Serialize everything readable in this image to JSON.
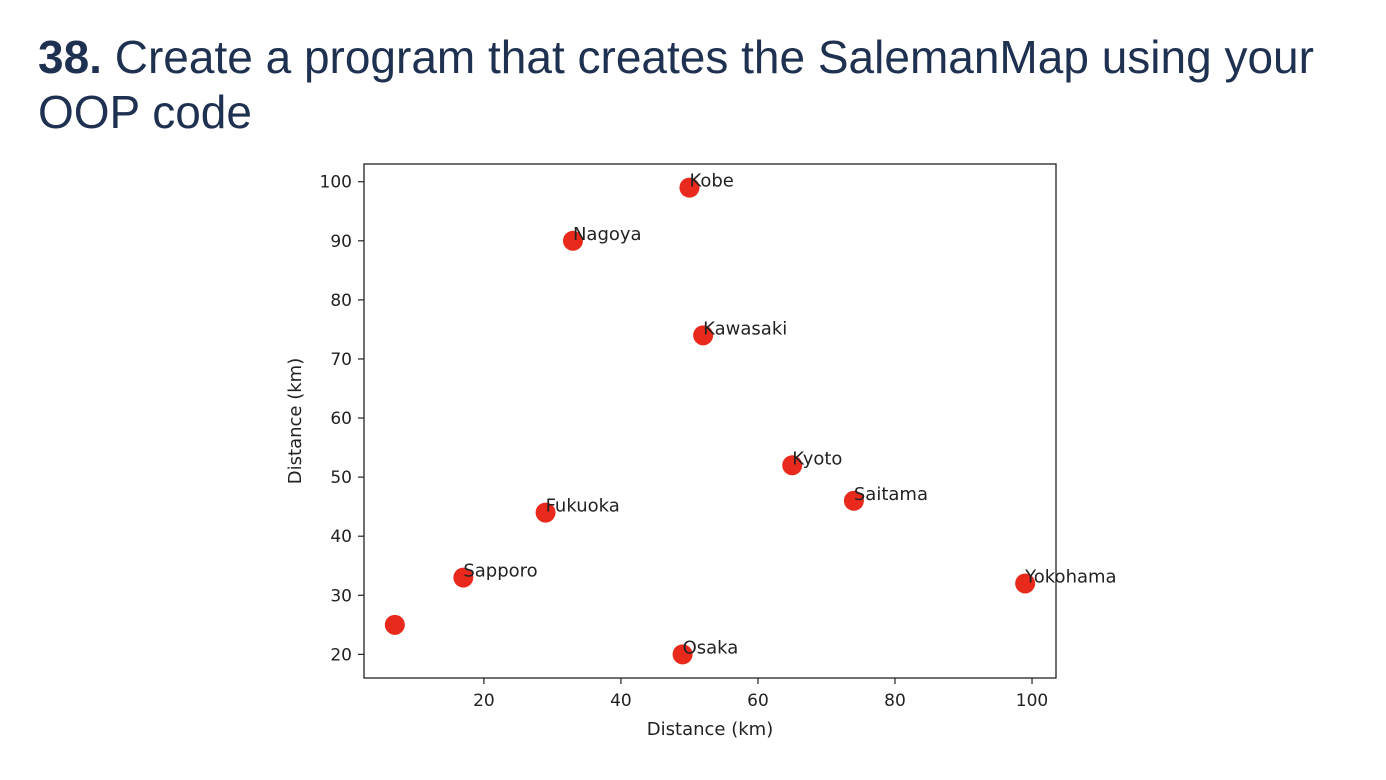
{
  "heading": {
    "number": "38.",
    "text": "Create a program that creates the SalemanMap using your OOP code"
  },
  "chart_data": {
    "type": "scatter",
    "title": "",
    "xlabel": "Distance (km)",
    "ylabel": "Distance (km)",
    "xlim": [
      2.5,
      103.5
    ],
    "ylim": [
      16,
      103
    ],
    "xticks": [
      20,
      40,
      60,
      80,
      100
    ],
    "yticks": [
      20,
      30,
      40,
      50,
      60,
      70,
      80,
      90,
      100
    ],
    "grid": false,
    "marker_color": "#e8291c",
    "points": [
      {
        "x": 7,
        "y": 25,
        "label": ""
      },
      {
        "x": 17,
        "y": 33,
        "label": "Sapporo"
      },
      {
        "x": 29,
        "y": 44,
        "label": "Fukuoka"
      },
      {
        "x": 33,
        "y": 90,
        "label": "Nagoya"
      },
      {
        "x": 50,
        "y": 99,
        "label": "Kobe"
      },
      {
        "x": 52,
        "y": 74,
        "label": "Kawasaki"
      },
      {
        "x": 49,
        "y": 20,
        "label": "Osaka"
      },
      {
        "x": 65,
        "y": 52,
        "label": "Kyoto"
      },
      {
        "x": 74,
        "y": 46,
        "label": "Saitama"
      },
      {
        "x": 99,
        "y": 32,
        "label": "Yokohama"
      }
    ]
  }
}
